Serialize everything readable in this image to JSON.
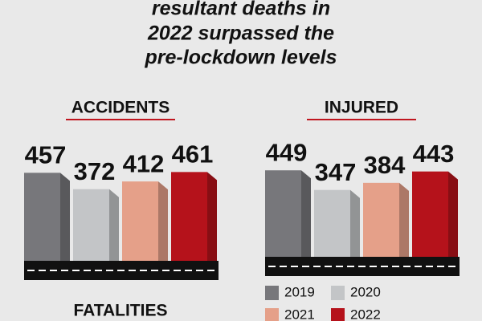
{
  "headline": [
    "resultant deaths in",
    "2022 surpassed the",
    "pre-lockdown levels"
  ],
  "chart_data": [
    {
      "type": "bar",
      "title": "ACCIDENTS",
      "categories": [
        "2019",
        "2020",
        "2021",
        "2022"
      ],
      "colors": [
        "#77777b",
        "#c3c5c7",
        "#e5a089",
        "#b5121b"
      ],
      "values": [
        457,
        372,
        412,
        461
      ],
      "ylim": [
        0,
        500
      ]
    },
    {
      "type": "bar",
      "title": "INJURED",
      "values": [
        449,
        347,
        384,
        443
      ],
      "ylim": [
        0,
        500
      ]
    }
  ],
  "section_title": "FATALITIES"
}
